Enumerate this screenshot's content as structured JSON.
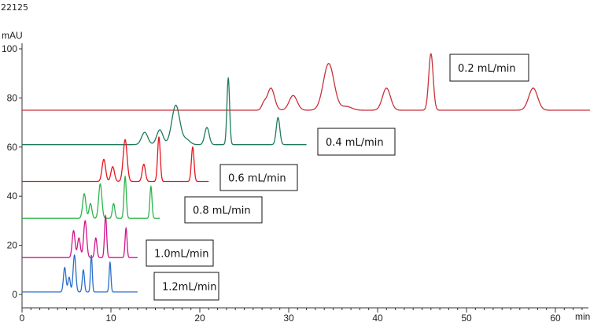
{
  "header": {
    "top_left_label": "22125"
  },
  "chart_data": {
    "type": "line",
    "title": "",
    "xlabel": "min",
    "ylabel": "mAU",
    "xlim": [
      0,
      65
    ],
    "ylim": [
      -5,
      105
    ],
    "xticks": [
      0,
      10,
      20,
      30,
      40,
      50,
      60
    ],
    "yticks": [
      0,
      20,
      40,
      60,
      80,
      100
    ],
    "grid": false,
    "series": [
      {
        "name": "0.2 mL/min",
        "color": "#c8323c",
        "baseline": 75,
        "x_end": 65,
        "peaks": [
          [
            27.2,
            2.5,
            0.25
          ],
          [
            28.0,
            9,
            0.4
          ],
          [
            30.5,
            6,
            0.45
          ],
          [
            34.5,
            19,
            0.6
          ],
          [
            36.5,
            1.5,
            0.6
          ],
          [
            41.0,
            9,
            0.45
          ],
          [
            46.0,
            23,
            0.25
          ],
          [
            57.5,
            9,
            0.5
          ]
        ]
      },
      {
        "name": "0.4 mL/min",
        "color": "#1f7a5c",
        "baseline": 61,
        "x_end": 32,
        "peaks": [
          [
            13.8,
            5,
            0.35
          ],
          [
            15.5,
            6,
            0.35
          ],
          [
            17.3,
            16,
            0.45
          ],
          [
            18.5,
            2,
            0.4
          ],
          [
            20.8,
            7,
            0.25
          ],
          [
            23.2,
            27,
            0.15
          ],
          [
            28.8,
            11,
            0.2
          ]
        ]
      },
      {
        "name": "0.6 mL/min",
        "color": "#e6151f",
        "baseline": 46,
        "x_end": 21,
        "peaks": [
          [
            9.2,
            9,
            0.2
          ],
          [
            10.2,
            6,
            0.2
          ],
          [
            11.6,
            17,
            0.22
          ],
          [
            13.7,
            7,
            0.18
          ],
          [
            15.4,
            18,
            0.15
          ],
          [
            19.2,
            14,
            0.15
          ]
        ]
      },
      {
        "name": "0.8 mL/min",
        "color": "#2db34a",
        "baseline": 31,
        "x_end": 15.5,
        "peaks": [
          [
            7.0,
            10,
            0.18
          ],
          [
            7.7,
            6,
            0.16
          ],
          [
            8.8,
            14,
            0.18
          ],
          [
            10.3,
            6,
            0.14
          ],
          [
            11.6,
            17,
            0.13
          ],
          [
            14.5,
            13,
            0.12
          ]
        ]
      },
      {
        "name": "1.0mL/min",
        "color": "#d0168a",
        "baseline": 15,
        "x_end": 13,
        "peaks": [
          [
            5.8,
            11,
            0.16
          ],
          [
            6.4,
            8,
            0.16
          ],
          [
            7.1,
            15,
            0.17
          ],
          [
            8.3,
            8,
            0.13
          ],
          [
            9.4,
            17,
            0.12
          ],
          [
            11.7,
            12,
            0.11
          ]
        ]
      },
      {
        "name": "1.2mL/min",
        "color": "#2a6fc9",
        "baseline": 1,
        "x_end": 13,
        "peaks": [
          [
            4.8,
            10,
            0.14
          ],
          [
            5.3,
            6,
            0.13
          ],
          [
            5.9,
            15,
            0.15
          ],
          [
            6.9,
            9,
            0.12
          ],
          [
            7.8,
            15,
            0.1
          ],
          [
            9.9,
            12,
            0.1
          ]
        ]
      }
    ]
  }
}
